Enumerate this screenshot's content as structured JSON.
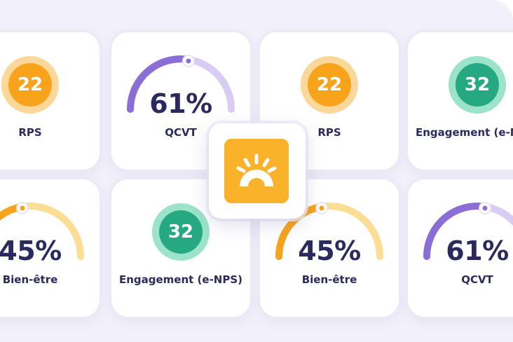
{
  "colors": {
    "orange": "#f7a31c",
    "orange_ring": "#fbd899",
    "teal": "#26a982",
    "teal_ring": "#9be3c9",
    "purple": "#8a6ed6",
    "purple_light": "#d8ccf3",
    "amber_light": "#fbdd94",
    "text_dark": "#2b2a5e",
    "logo_bg": "#f9b22a"
  },
  "logo": {
    "icon": "sunrise-icon"
  },
  "cards": [
    {
      "id": "rps-1",
      "value": "22",
      "label": "RPS"
    },
    {
      "id": "qcvt-1",
      "value": "61%",
      "label": "QCVT",
      "level": 0.61
    },
    {
      "id": "rps-2",
      "value": "22",
      "label": "RPS"
    },
    {
      "id": "engagement-1",
      "value": "32",
      "label": "Engagement (e-NPS)"
    },
    {
      "id": "bienetre-1",
      "value": "45%",
      "label": "Bien-être",
      "level": 0.45
    },
    {
      "id": "engagement-2",
      "value": "32",
      "label": "Engagement (e-NPS)"
    },
    {
      "id": "bienetre-2",
      "value": "45%",
      "label": "Bien-être",
      "level": 0.45
    },
    {
      "id": "qcvt-2",
      "value": "61%",
      "label": "QCVT",
      "level": 0.61
    }
  ]
}
